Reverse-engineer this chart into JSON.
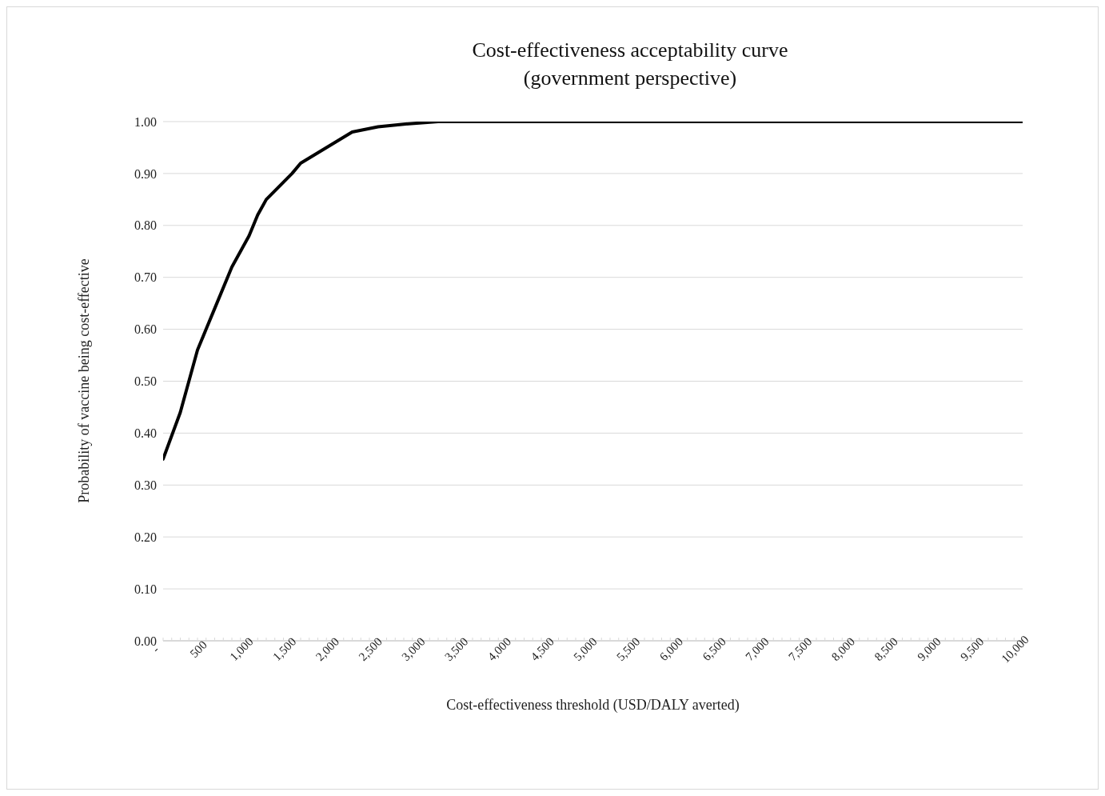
{
  "chart_data": {
    "type": "line",
    "title": "Cost-effectiveness acceptability curve",
    "subtitle": "(government perspective)",
    "xlabel": "Cost-effectiveness threshold (USD/DALY averted)",
    "ylabel": "Probability of vaccine being cost-effective",
    "x": [
      0,
      200,
      300,
      400,
      500,
      600,
      800,
      1000,
      1100,
      1200,
      1500,
      1600,
      1800,
      2000,
      2200,
      2500,
      2800,
      3200,
      3500,
      4000,
      5000,
      6000,
      7000,
      8000,
      9000,
      10000
    ],
    "series": [
      {
        "color": "#000000",
        "values": [
          0.35,
          0.44,
          0.5,
          0.56,
          0.6,
          0.64,
          0.72,
          0.78,
          0.82,
          0.85,
          0.9,
          0.92,
          0.94,
          0.96,
          0.98,
          0.99,
          0.995,
          1.0,
          1.0,
          1.0,
          1.0,
          1.0,
          1.0,
          1.0,
          1.0,
          1.0
        ]
      }
    ],
    "xlim": [
      0,
      10000
    ],
    "xticks": [
      {
        "value": 0,
        "label": "-"
      },
      {
        "value": 100,
        "label": null
      },
      {
        "value": 200,
        "label": null
      },
      {
        "value": 300,
        "label": null
      },
      {
        "value": 400,
        "label": null
      },
      500,
      {
        "value": 600,
        "label": null
      },
      {
        "value": 700,
        "label": null
      },
      {
        "value": 800,
        "label": null
      },
      {
        "value": 900,
        "label": null
      },
      {
        "value": 1000,
        "label": "1,000"
      },
      {
        "value": 1100,
        "label": null
      },
      {
        "value": 1200,
        "label": null
      },
      {
        "value": 1300,
        "label": null
      },
      {
        "value": 1400,
        "label": null
      },
      {
        "value": 1500,
        "label": "1,500"
      },
      {
        "value": 1600,
        "label": null
      },
      {
        "value": 1700,
        "label": null
      },
      {
        "value": 1800,
        "label": null
      },
      {
        "value": 1900,
        "label": null
      },
      {
        "value": 2000,
        "label": "2,000"
      },
      {
        "value": 2100,
        "label": null
      },
      {
        "value": 2200,
        "label": null
      },
      {
        "value": 2300,
        "label": null
      },
      {
        "value": 2400,
        "label": null
      },
      {
        "value": 2500,
        "label": "2,500"
      },
      {
        "value": 2600,
        "label": null
      },
      {
        "value": 2700,
        "label": null
      },
      {
        "value": 2800,
        "label": null
      },
      {
        "value": 2900,
        "label": null
      },
      {
        "value": 3000,
        "label": "3,000"
      },
      {
        "value": 3100,
        "label": null
      },
      {
        "value": 3200,
        "label": null
      },
      {
        "value": 3300,
        "label": null
      },
      {
        "value": 3400,
        "label": null
      },
      {
        "value": 3500,
        "label": "3,500"
      },
      {
        "value": 3600,
        "label": null
      },
      {
        "value": 3700,
        "label": null
      },
      {
        "value": 3800,
        "label": null
      },
      {
        "value": 3900,
        "label": null
      },
      {
        "value": 4000,
        "label": "4,000"
      },
      {
        "value": 4100,
        "label": null
      },
      {
        "value": 4200,
        "label": null
      },
      {
        "value": 4300,
        "label": null
      },
      {
        "value": 4400,
        "label": null
      },
      {
        "value": 4500,
        "label": "4,500"
      },
      {
        "value": 4600,
        "label": null
      },
      {
        "value": 4700,
        "label": null
      },
      {
        "value": 4800,
        "label": null
      },
      {
        "value": 4900,
        "label": null
      },
      {
        "value": 5000,
        "label": "5,000"
      },
      {
        "value": 5100,
        "label": null
      },
      {
        "value": 5200,
        "label": null
      },
      {
        "value": 5300,
        "label": null
      },
      {
        "value": 5400,
        "label": null
      },
      {
        "value": 5500,
        "label": "5,500"
      },
      {
        "value": 5600,
        "label": null
      },
      {
        "value": 5700,
        "label": null
      },
      {
        "value": 5800,
        "label": null
      },
      {
        "value": 5900,
        "label": null
      },
      {
        "value": 6000,
        "label": "6,000"
      },
      {
        "value": 6100,
        "label": null
      },
      {
        "value": 6200,
        "label": null
      },
      {
        "value": 6300,
        "label": null
      },
      {
        "value": 6400,
        "label": null
      },
      {
        "value": 6500,
        "label": "6,500"
      },
      {
        "value": 6600,
        "label": null
      },
      {
        "value": 6700,
        "label": null
      },
      {
        "value": 6800,
        "label": null
      },
      {
        "value": 6900,
        "label": null
      },
      {
        "value": 7000,
        "label": "7,000"
      },
      {
        "value": 7100,
        "label": null
      },
      {
        "value": 7200,
        "label": null
      },
      {
        "value": 7300,
        "label": null
      },
      {
        "value": 7400,
        "label": null
      },
      {
        "value": 7500,
        "label": "7,500"
      },
      {
        "value": 7600,
        "label": null
      },
      {
        "value": 7700,
        "label": null
      },
      {
        "value": 7800,
        "label": null
      },
      {
        "value": 7900,
        "label": null
      },
      {
        "value": 8000,
        "label": "8,000"
      },
      {
        "value": 8100,
        "label": null
      },
      {
        "value": 8200,
        "label": null
      },
      {
        "value": 8300,
        "label": null
      },
      {
        "value": 8400,
        "label": null
      },
      {
        "value": 8500,
        "label": "8,500"
      },
      {
        "value": 8600,
        "label": null
      },
      {
        "value": 8700,
        "label": null
      },
      {
        "value": 8800,
        "label": null
      },
      {
        "value": 8900,
        "label": null
      },
      {
        "value": 9000,
        "label": "9,000"
      },
      {
        "value": 9100,
        "label": null
      },
      {
        "value": 9200,
        "label": null
      },
      {
        "value": 9300,
        "label": null
      },
      {
        "value": 9400,
        "label": null
      },
      {
        "value": 9500,
        "label": "9,500"
      },
      {
        "value": 9600,
        "label": null
      },
      {
        "value": 9700,
        "label": null
      },
      {
        "value": 9800,
        "label": null
      },
      {
        "value": 9900,
        "label": null
      },
      {
        "value": 10000,
        "label": "10,000"
      }
    ],
    "ylim": [
      0,
      1
    ],
    "yticks": [
      {
        "value": 0,
        "label": "0.00"
      },
      {
        "value": 0.1,
        "label": "0.10"
      },
      {
        "value": 0.2,
        "label": "0.20"
      },
      {
        "value": 0.3,
        "label": "0.30"
      },
      {
        "value": 0.4,
        "label": "0.40"
      },
      {
        "value": 0.5,
        "label": "0.50"
      },
      {
        "value": 0.6,
        "label": "0.60"
      },
      {
        "value": 0.7,
        "label": "0.70"
      },
      {
        "value": 0.8,
        "label": "0.80"
      },
      {
        "value": 0.9,
        "label": "0.90"
      },
      {
        "value": 1,
        "label": "1.00"
      }
    ],
    "grid": "y",
    "legend": false,
    "marker": "none",
    "line_style": "solid"
  }
}
